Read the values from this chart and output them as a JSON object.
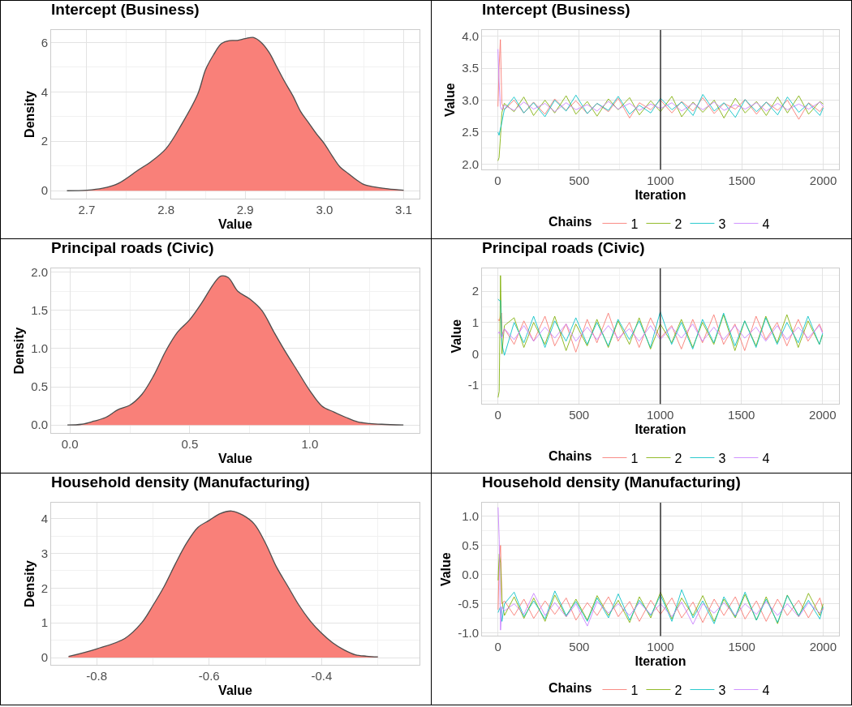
{
  "chart_data": [
    {
      "type": "area",
      "title": "Intercept (Business)",
      "xlabel": "Value",
      "ylabel": "Density",
      "color": "#f98079",
      "x": [
        2.675,
        2.7,
        2.72,
        2.74,
        2.766,
        2.78,
        2.8,
        2.82,
        2.84,
        2.85,
        2.86,
        2.87,
        2.88,
        2.89,
        2.9,
        2.91,
        2.92,
        2.93,
        2.94,
        2.95,
        2.96,
        2.97,
        2.98,
        2.99,
        3.0,
        3.01,
        3.02,
        3.03,
        3.04,
        3.05,
        3.06,
        3.08,
        3.1
      ],
      "values": [
        0,
        0.02,
        0.1,
        0.3,
        0.86,
        1.15,
        1.7,
        2.7,
        3.9,
        4.9,
        5.5,
        5.95,
        6.07,
        6.08,
        6.15,
        6.2,
        6.0,
        5.6,
        5.0,
        4.4,
        3.85,
        3.2,
        2.75,
        2.3,
        1.9,
        1.4,
        0.95,
        0.7,
        0.45,
        0.25,
        0.17,
        0.08,
        0.02
      ],
      "xlim": [
        2.655,
        3.12
      ],
      "ylim": [
        -0.32,
        6.5
      ],
      "xticks": [
        2.7,
        2.8,
        2.9,
        {
          "value": 3,
          "label": "3.0"
        },
        3.1
      ],
      "yticks": [
        0,
        2,
        4,
        6
      ],
      "grid": true
    },
    {
      "type": "line",
      "title": "Intercept (Business)",
      "xlabel": "Iteration",
      "ylabel": "Value",
      "legend_title": "Chains",
      "legend": "bottom",
      "grid": true,
      "x": [
        1,
        8,
        16,
        25,
        40,
        100,
        160,
        220,
        290,
        350,
        420,
        480,
        550,
        610,
        680,
        740,
        810,
        870,
        940,
        1000,
        1070,
        1130,
        1200,
        1260,
        1330,
        1390,
        1460,
        1520,
        1590,
        1650,
        1720,
        1780,
        1850,
        1910,
        1980,
        2000
      ],
      "xlim": [
        -97,
        2097
      ],
      "ylim": [
        1.91,
        4.1
      ],
      "xticks": [
        0,
        500,
        1000,
        1500,
        2000
      ],
      "yticks": [
        {
          "value": 2,
          "label": "2.0"
        },
        2.5,
        {
          "value": 3,
          "label": "3.0"
        },
        3.5,
        {
          "value": 4,
          "label": "4.0"
        }
      ],
      "ref_lines": [
        {
          "axis": "x",
          "value": 1000,
          "color": "#333333"
        }
      ],
      "series": [
        {
          "name": "1",
          "color": "#f8766d",
          "values": [
            2.9,
            3.5,
            3.95,
            2.95,
            2.85,
            3.0,
            2.8,
            2.97,
            2.78,
            3.02,
            2.84,
            2.99,
            2.79,
            2.95,
            2.82,
            3.03,
            2.72,
            2.96,
            2.85,
            3.0,
            2.8,
            2.98,
            2.83,
            3.04,
            2.79,
            2.95,
            2.86,
            3.01,
            2.78,
            2.97,
            2.84,
            3.0,
            2.7,
            2.96,
            2.82,
            2.9
          ]
        },
        {
          "name": "2",
          "color": "#7cae00",
          "values": [
            2.05,
            2.1,
            2.4,
            2.8,
            2.95,
            2.82,
            3.05,
            2.76,
            3.0,
            2.8,
            3.07,
            2.78,
            2.98,
            2.75,
            3.02,
            2.85,
            3.04,
            2.77,
            2.99,
            2.82,
            3.06,
            2.74,
            2.97,
            2.81,
            3.0,
            2.72,
            3.03,
            2.8,
            2.98,
            2.76,
            3.05,
            2.8,
            3.07,
            2.78,
            2.98,
            2.94
          ]
        },
        {
          "name": "3",
          "color": "#00bfc4",
          "values": [
            2.5,
            2.45,
            2.55,
            2.65,
            2.85,
            3.05,
            2.8,
            2.96,
            2.74,
            3.0,
            2.83,
            3.08,
            2.79,
            2.95,
            2.84,
            3.06,
            2.78,
            2.92,
            2.8,
            3.03,
            2.85,
            2.97,
            2.76,
            3.09,
            2.83,
            2.96,
            2.73,
            3.01,
            2.82,
            2.97,
            2.77,
            3.05,
            2.81,
            2.95,
            2.76,
            2.88
          ]
        },
        {
          "name": "4",
          "color": "#c77cff",
          "values": [
            3.8,
            3.3,
            2.9,
            2.85,
            2.92,
            2.84,
            2.97,
            2.86,
            2.95,
            2.82,
            2.96,
            2.85,
            2.93,
            2.83,
            2.98,
            2.86,
            2.95,
            2.84,
            2.94,
            2.87,
            2.96,
            2.83,
            2.95,
            2.85,
            2.97,
            2.84,
            2.93,
            2.86,
            2.96,
            2.83,
            2.95,
            2.85,
            2.94,
            2.86,
            2.97,
            2.9
          ]
        }
      ]
    },
    {
      "type": "area",
      "title": "Principal roads (Civic)",
      "xlabel": "Value",
      "ylabel": "Density",
      "color": "#f98079",
      "x": [
        -0.01,
        0.05,
        0.1,
        0.15,
        0.2,
        0.25,
        0.3,
        0.35,
        0.4,
        0.45,
        0.5,
        0.55,
        0.6,
        0.63,
        0.66,
        0.7,
        0.75,
        0.8,
        0.85,
        0.9,
        0.95,
        1.0,
        1.05,
        1.1,
        1.15,
        1.2,
        1.25,
        1.3,
        1.39
      ],
      "values": [
        0,
        0.01,
        0.05,
        0.1,
        0.2,
        0.26,
        0.4,
        0.65,
        0.97,
        1.22,
        1.38,
        1.6,
        1.85,
        1.95,
        1.93,
        1.75,
        1.65,
        1.5,
        1.22,
        0.95,
        0.7,
        0.45,
        0.25,
        0.17,
        0.1,
        0.04,
        0.02,
        0.01,
        0
      ],
      "xlim": [
        -0.078,
        1.457
      ],
      "ylim": [
        -0.104,
        2.05
      ],
      "xticks": [
        {
          "value": 0,
          "label": "0.0"
        },
        0.5,
        {
          "value": 1,
          "label": "1.0"
        }
      ],
      "yticks": [
        {
          "value": 0,
          "label": "0.0"
        },
        0.5,
        {
          "value": 1,
          "label": "1.0"
        },
        1.5,
        {
          "value": 2,
          "label": "2.0"
        }
      ],
      "grid": true
    },
    {
      "type": "line",
      "title": "Principal roads (Civic)",
      "xlabel": "Iteration",
      "ylabel": "Value",
      "legend_title": "Chains",
      "legend": "bottom",
      "grid": true,
      "x": [
        1,
        8,
        16,
        25,
        40,
        100,
        160,
        220,
        290,
        350,
        420,
        480,
        550,
        610,
        680,
        740,
        810,
        870,
        940,
        1000,
        1070,
        1130,
        1200,
        1260,
        1330,
        1390,
        1460,
        1520,
        1590,
        1650,
        1720,
        1780,
        1850,
        1910,
        1980,
        2000
      ],
      "xlim": [
        -98,
        2101
      ],
      "ylim": [
        -1.61,
        2.73
      ],
      "xticks": [
        0,
        500,
        1000,
        1500,
        2000
      ],
      "yticks": [
        -1,
        0,
        1,
        2
      ],
      "ref_lines": [
        {
          "axis": "x",
          "value": 1000,
          "color": "#333333"
        }
      ],
      "series": [
        {
          "name": "1",
          "color": "#f8766d",
          "x": [
            1,
            8,
            22,
            25,
            40,
            100,
            160,
            220,
            290,
            350,
            420,
            480,
            550,
            610,
            680,
            740,
            810,
            870,
            940,
            1000,
            1070,
            1130,
            1200,
            1260,
            1330,
            1390,
            1460,
            1520,
            1590,
            1650,
            1720,
            1780,
            1850,
            1910,
            1980,
            2000
          ],
          "values": [
            1.1,
            1.05,
            1.3,
            0.6,
            0.8,
            0.3,
            1.05,
            0.4,
            1.2,
            0.25,
            0.95,
            0.05,
            1.1,
            0.35,
            1.3,
            0.4,
            1.0,
            0.2,
            1.15,
            0.5,
            0.9,
            0.15,
            1.1,
            0.35,
            1.25,
            0.3,
            0.95,
            0.1,
            1.2,
            0.45,
            1.0,
            0.25,
            1.1,
            0.4,
            0.95,
            0.7
          ]
        },
        {
          "name": "2",
          "color": "#7cae00",
          "values": [
            -1.4,
            -1.2,
            2.5,
            0.0,
            0.9,
            1.15,
            0.2,
            1.0,
            0.3,
            1.2,
            0.1,
            0.95,
            0.25,
            1.1,
            0.2,
            1.05,
            0.3,
            1.15,
            0.15,
            0.95,
            0.35,
            1.1,
            0.2,
            1.0,
            0.3,
            1.25,
            0.1,
            1.05,
            0.25,
            1.2,
            0.35,
            1.25,
            0.2,
            1.05,
            0.3,
            0.6
          ]
        },
        {
          "name": "3",
          "color": "#00bfc4",
          "values": [
            1.75,
            1.7,
            1.7,
            0.3,
            -0.05,
            1.0,
            0.35,
            1.2,
            0.2,
            1.05,
            0.4,
            1.15,
            0.3,
            1.0,
            0.25,
            1.1,
            0.45,
            1.05,
            0.2,
            1.35,
            0.3,
            1.0,
            0.15,
            1.1,
            0.35,
            1.3,
            0.25,
            1.05,
            0.2,
            1.15,
            0.3,
            1.0,
            0.35,
            1.2,
            0.3,
            0.65
          ]
        },
        {
          "name": "4",
          "color": "#c77cff",
          "values": [
            0.65,
            0.7,
            0.6,
            0.5,
            0.8,
            0.45,
            0.9,
            0.4,
            0.85,
            0.5,
            0.95,
            0.4,
            0.85,
            0.45,
            0.9,
            0.5,
            0.8,
            0.4,
            0.9,
            0.45,
            0.85,
            0.5,
            0.95,
            0.4,
            0.85,
            0.45,
            0.9,
            0.5,
            0.85,
            0.4,
            0.9,
            0.45,
            0.85,
            0.5,
            0.9,
            0.65
          ]
        }
      ]
    },
    {
      "type": "area",
      "title": "Household density (Manufacturing)",
      "xlabel": "Value",
      "ylabel": "Density",
      "color": "#f98079",
      "x": [
        -0.85,
        -0.8,
        -0.75,
        -0.72,
        -0.7,
        -0.68,
        -0.66,
        -0.64,
        -0.62,
        -0.6,
        -0.58,
        -0.56,
        -0.54,
        -0.52,
        -0.5,
        -0.48,
        -0.46,
        -0.44,
        -0.42,
        -0.4,
        -0.38,
        -0.36,
        -0.34,
        -0.32,
        -0.3
      ],
      "values": [
        0.03,
        0.25,
        0.55,
        1.0,
        1.5,
        2.05,
        2.7,
        3.3,
        3.75,
        3.95,
        4.15,
        4.22,
        4.1,
        3.85,
        3.3,
        2.6,
        2.05,
        1.5,
        1.05,
        0.7,
        0.42,
        0.22,
        0.08,
        0.04,
        0.02
      ],
      "xlim": [
        -0.881,
        -0.226
      ],
      "ylim": [
        -0.21,
        4.46
      ],
      "xticks": [
        -0.8,
        -0.6,
        -0.4
      ],
      "yticks": [
        0,
        1,
        2,
        3,
        4
      ],
      "grid": true
    },
    {
      "type": "line",
      "title": "Household density (Manufacturing)",
      "xlabel": "Iteration",
      "ylabel": "Value",
      "legend_title": "Chains",
      "legend": "bottom",
      "grid": true,
      "x": [
        1,
        8,
        16,
        25,
        40,
        100,
        160,
        220,
        290,
        350,
        420,
        480,
        550,
        610,
        680,
        740,
        810,
        870,
        940,
        1000,
        1070,
        1130,
        1200,
        1260,
        1330,
        1390,
        1460,
        1520,
        1590,
        1650,
        1720,
        1780,
        1850,
        1910,
        1980,
        2000
      ],
      "xlim": [
        -98,
        2098
      ],
      "ylim": [
        -1.05,
        1.23
      ],
      "xticks": [
        0,
        500,
        1000,
        1500,
        2000
      ],
      "yticks": [
        {
          "value": -1,
          "label": "-1.0"
        },
        -0.5,
        {
          "value": 0,
          "label": "0.0"
        },
        0.5,
        {
          "value": 1,
          "label": "1.0"
        }
      ],
      "ref_lines": [
        {
          "axis": "x",
          "value": 1000,
          "color": "#333333"
        }
      ],
      "series": [
        {
          "name": "1",
          "color": "#f8766d",
          "values": [
            -0.6,
            0.2,
            0.5,
            -0.5,
            -0.45,
            -0.7,
            -0.42,
            -0.75,
            -0.45,
            -0.68,
            -0.4,
            -0.78,
            -0.48,
            -0.7,
            -0.38,
            -0.72,
            -0.46,
            -0.8,
            -0.44,
            -0.68,
            -0.4,
            -0.74,
            -0.47,
            -0.82,
            -0.42,
            -0.7,
            -0.38,
            -0.76,
            -0.45,
            -0.8,
            -0.42,
            -0.7,
            -0.44,
            -0.74,
            -0.4,
            -0.6
          ]
        },
        {
          "name": "2",
          "color": "#7cae00",
          "values": [
            -0.1,
            0.35,
            0.2,
            -0.45,
            -0.7,
            -0.38,
            -0.75,
            -0.4,
            -0.8,
            -0.35,
            -0.72,
            -0.42,
            -0.78,
            -0.36,
            -0.7,
            -0.44,
            -0.82,
            -0.38,
            -0.74,
            -0.3,
            -0.76,
            -0.4,
            -0.7,
            -0.36,
            -0.8,
            -0.42,
            -0.74,
            -0.34,
            -0.78,
            -0.38,
            -0.84,
            -0.35,
            -0.72,
            -0.32,
            -0.7,
            -0.5
          ]
        },
        {
          "name": "3",
          "color": "#00bfc4",
          "values": [
            -0.65,
            -0.6,
            -0.55,
            -0.8,
            -0.5,
            -0.3,
            -0.72,
            -0.45,
            -0.76,
            -0.28,
            -0.7,
            -0.46,
            -0.8,
            -0.4,
            -0.74,
            -0.33,
            -0.78,
            -0.44,
            -0.7,
            -0.35,
            -0.8,
            -0.26,
            -0.74,
            -0.45,
            -0.84,
            -0.38,
            -0.72,
            -0.3,
            -0.78,
            -0.42,
            -0.82,
            -0.36,
            -0.7,
            -0.44,
            -0.76,
            -0.55
          ]
        },
        {
          "name": "4",
          "color": "#c77cff",
          "values": [
            1.15,
            0.6,
            -0.95,
            -0.55,
            -0.62,
            -0.5,
            -0.68,
            -0.32,
            -0.7,
            -0.48,
            -0.72,
            -0.5,
            -0.88,
            -0.46,
            -0.66,
            -0.5,
            -0.7,
            -0.48,
            -0.68,
            -0.5,
            -0.72,
            -0.47,
            -0.85,
            -0.5,
            -0.66,
            -0.48,
            -0.7,
            -0.5,
            -0.68,
            -0.46,
            -0.7,
            -0.5,
            -0.72,
            -0.48,
            -0.66,
            -0.58
          ]
        }
      ]
    }
  ]
}
